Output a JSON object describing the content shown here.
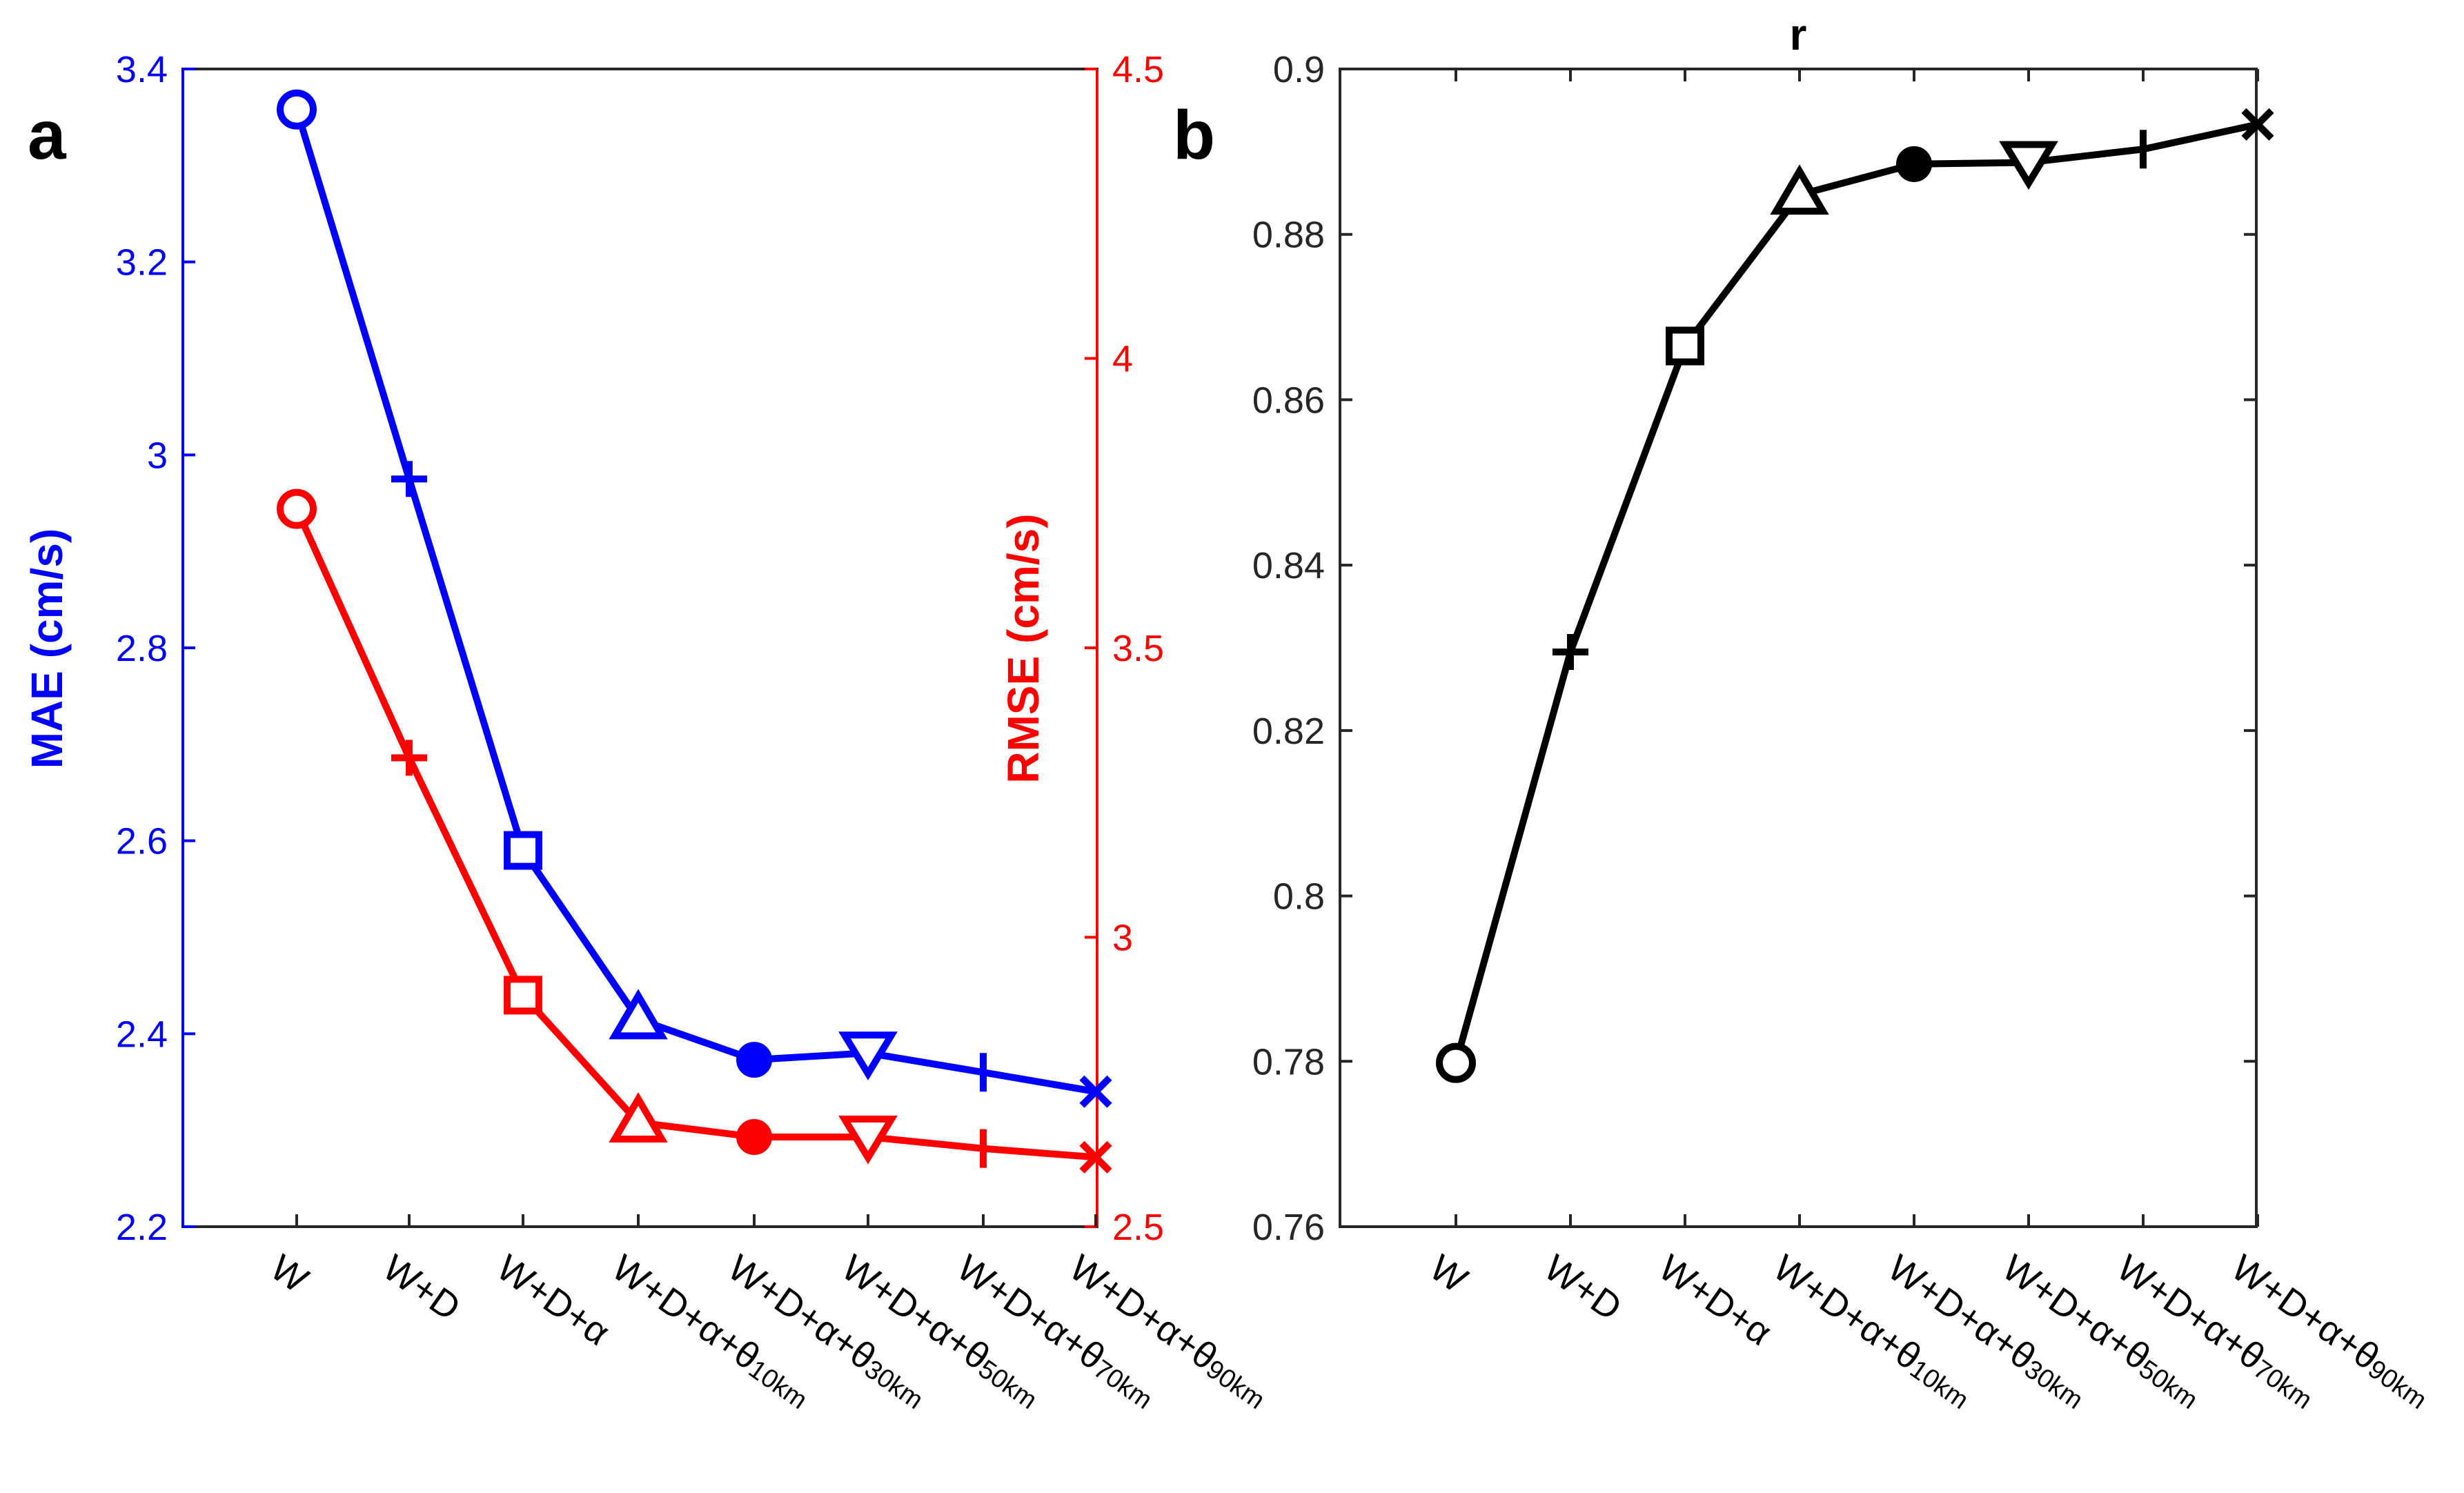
{
  "chart_data": [
    {
      "panel": "a",
      "type": "line",
      "title": "",
      "categories": [
        "W",
        "W+D",
        "W+D+α",
        "W+D+α+θ10km",
        "W+D+α+θ30km",
        "W+D+α+θ50km",
        "W+D+α+θ70km",
        "W+D+α+θ90km"
      ],
      "category_labels": [
        {
          "main": "W",
          "sub": ""
        },
        {
          "main": "W+D",
          "sub": ""
        },
        {
          "main": "W+D+α",
          "sub": ""
        },
        {
          "main": "W+D+α+θ",
          "sub": "10km"
        },
        {
          "main": "W+D+α+θ",
          "sub": "30km"
        },
        {
          "main": "W+D+α+θ",
          "sub": "50km"
        },
        {
          "main": "W+D+α+θ",
          "sub": "70km"
        },
        {
          "main": "W+D+α+θ",
          "sub": "90km"
        }
      ],
      "markers": [
        "circle",
        "plus",
        "square",
        "triangle-up",
        "filled-circle",
        "triangle-down",
        "vbar",
        "cross"
      ],
      "ylabel_left": "MAE (cm/s)",
      "ylabel_right": "RMSE (cm/s)",
      "ylim_left": [
        2.2,
        3.4
      ],
      "ylim_right": [
        2.5,
        4.5
      ],
      "yticks_left": [
        "2.2",
        "2.4",
        "2.6",
        "2.8",
        "3",
        "3.2",
        "3.4"
      ],
      "yticks_right": [
        "2.5",
        "3",
        "3.5",
        "4",
        "4.5"
      ],
      "series": [
        {
          "name": "MAE",
          "axis": "left",
          "color": "#0000ff",
          "values": [
            3.358,
            2.975,
            2.59,
            2.415,
            2.373,
            2.38,
            2.36,
            2.34
          ]
        },
        {
          "name": "RMSE",
          "axis": "right",
          "color": "#ff0000",
          "values": [
            3.74,
            3.31,
            2.9,
            2.68,
            2.655,
            2.655,
            2.635,
            2.62
          ]
        }
      ]
    },
    {
      "panel": "b",
      "type": "line",
      "title": "r",
      "categories": [
        "W",
        "W+D",
        "W+D+α",
        "W+D+α+θ10km",
        "W+D+α+θ30km",
        "W+D+α+θ50km",
        "W+D+α+θ70km",
        "W+D+α+θ90km"
      ],
      "category_labels": [
        {
          "main": "W",
          "sub": ""
        },
        {
          "main": "W+D",
          "sub": ""
        },
        {
          "main": "W+D+α",
          "sub": ""
        },
        {
          "main": "W+D+α+θ",
          "sub": "10km"
        },
        {
          "main": "W+D+α+θ",
          "sub": "30km"
        },
        {
          "main": "W+D+α+θ",
          "sub": "50km"
        },
        {
          "main": "W+D+α+θ",
          "sub": "70km"
        },
        {
          "main": "W+D+α+θ",
          "sub": "90km"
        }
      ],
      "markers": [
        "circle",
        "plus",
        "square",
        "triangle-up",
        "filled-circle",
        "triangle-down",
        "vbar",
        "cross"
      ],
      "ylabel": "",
      "ylim": [
        0.76,
        0.9
      ],
      "yticks": [
        "0.76",
        "0.78",
        "0.8",
        "0.82",
        "0.84",
        "0.86",
        "0.88",
        "0.9"
      ],
      "series": [
        {
          "name": "r",
          "color": "#000000",
          "values": [
            0.7798,
            0.8295,
            0.8665,
            0.8848,
            0.8885,
            0.8887,
            0.8903,
            0.8933
          ]
        }
      ]
    }
  ],
  "colors": {
    "mae": "#0000ff",
    "rmse": "#ff0000",
    "r": "#000000",
    "axis": "#262626"
  }
}
